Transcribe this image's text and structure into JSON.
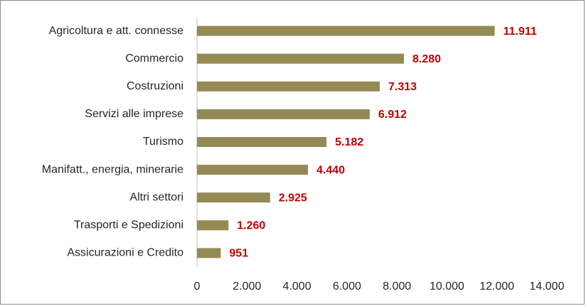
{
  "chart_data": {
    "type": "bar",
    "orientation": "horizontal",
    "categories": [
      "Agricoltura e att. connesse",
      "Commercio",
      "Costruzioni",
      "Servizi alle imprese",
      "Turismo",
      "Manifatt., energia, minerarie",
      "Altri settori",
      "Trasporti e Spedizioni",
      "Assicurazioni e Credito"
    ],
    "values": [
      11911,
      8280,
      7313,
      6912,
      5182,
      4440,
      2925,
      1260,
      951
    ],
    "value_labels": [
      "11.911",
      "8.280",
      "7.313",
      "6.912",
      "5.182",
      "4.440",
      "2.925",
      "1.260",
      "951"
    ],
    "color": "#948a54",
    "value_label_color": "#c00000",
    "xlim": [
      0,
      14000
    ],
    "xticks": [
      0,
      {
        "value": 2000,
        "label": "2.000"
      },
      {
        "value": 4000,
        "label": "4.000"
      },
      {
        "value": 6000,
        "label": "6.000"
      },
      {
        "value": 8000,
        "label": "8.000"
      },
      {
        "value": 10000,
        "label": "10.000"
      },
      {
        "value": 12000,
        "label": "12.000"
      },
      {
        "value": 14000,
        "label": "14.000"
      }
    ],
    "grid": false
  }
}
